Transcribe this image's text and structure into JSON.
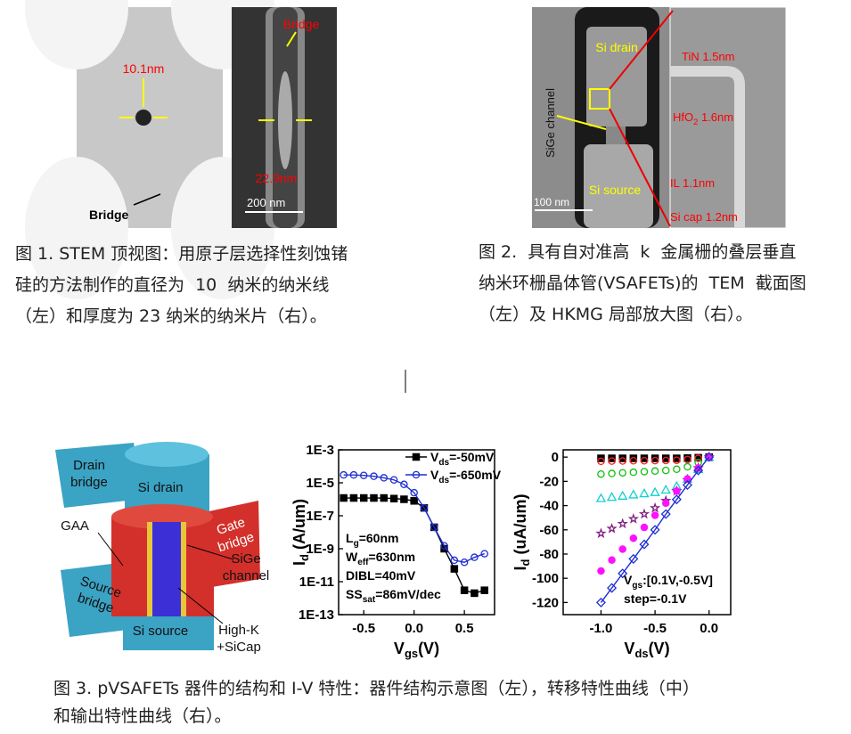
{
  "figure1": {
    "left_image": {
      "diameter": "10.1nm",
      "bridge": "Bridge"
    },
    "right_image": {
      "bridge": "Bridge",
      "thickness": "22.9nm",
      "scale": "200 nm"
    },
    "caption": [
      "图 1. STEM 顶视图：用原子层选择性刻蚀锗",
      "硅的方法制作的直径为  10  纳米的纳米线",
      "（左）和厚度为 23 纳米的纳米片（右）。"
    ]
  },
  "figure2": {
    "image": {
      "drain": "Si drain",
      "channel": "SiGe channel",
      "source": "Si source",
      "scale": "100 nm",
      "tin": "TiN 1.5nm",
      "hfo2": [
        "HfO",
        "2",
        " 1.6nm"
      ],
      "il": "IL 1.1nm",
      "sicap": "Si cap 1.2nm"
    },
    "caption": [
      "图 2.  具有自对准高  k  金属栅的叠层垂直",
      "纳米环栅晶体管(VSAFETs)的  TEM  截面图",
      "（左）及 HKMG 局部放大图（右）。"
    ]
  },
  "figure3": {
    "schematic": {
      "drain_bridge": [
        "Drain",
        "bridge"
      ],
      "si_drain": [
        "Si drain"
      ],
      "gaa": [
        "GAA"
      ],
      "gate_bridge": [
        "Gate",
        "bridge"
      ],
      "sige": [
        "SiGe",
        "channel"
      ],
      "source_bridge": [
        "Source",
        "bridge"
      ],
      "si_source": [
        "Si source"
      ],
      "highk": [
        "High-K",
        "+SiCap"
      ]
    },
    "chart_data": [
      {
        "type": "line",
        "log_y": true,
        "xlabel": [
          "V",
          "gs",
          "(V)"
        ],
        "ylabel": [
          "I",
          "d",
          " (A/um)"
        ],
        "xlim": [
          -0.75,
          0.8
        ],
        "xticks": [
          -0.5,
          {
            "value": 0,
            "label": "0.0"
          },
          0.5
        ],
        "ylim": [
          1e-13,
          0.001
        ],
        "yticks": [
          {
            "value": 0.001,
            "label": "1E-3"
          },
          {
            "value": 1e-05,
            "label": "1E-5"
          },
          {
            "value": 1e-07,
            "label": "1E-7"
          },
          {
            "value": 1e-09,
            "label": "1E-9"
          },
          {
            "value": 1e-11,
            "label": "1E-11"
          },
          {
            "value": 1e-13,
            "label": "1E-13"
          }
        ],
        "legend": "upper right",
        "x": [
          -0.7,
          -0.6,
          -0.5,
          -0.4,
          -0.3,
          -0.2,
          -0.1,
          0,
          0.1,
          0.2,
          0.3,
          0.4,
          0.5,
          0.6,
          0.7
        ],
        "series": [
          {
            "name": [
              "V",
              "ds",
              "=-50mV"
            ],
            "color": "#000000",
            "marker": "square",
            "filled": true,
            "line": true,
            "values": [
              1.2e-06,
              1.2e-06,
              1.2e-06,
              1.2e-06,
              1.2e-06,
              1.1e-06,
              1e-06,
              8e-07,
              3e-07,
              2e-08,
              1e-09,
              6e-11,
              3e-12,
              2e-12,
              3e-12
            ]
          },
          {
            "name": [
              "V",
              "ds",
              "=-650mV"
            ],
            "color": "#1f2fd0",
            "marker": "circle",
            "filled": false,
            "line": true,
            "values": [
              3e-05,
              3e-05,
              2.8e-05,
              2.5e-05,
              2e-05,
              1.5e-05,
              8e-06,
              2.5e-06,
              3e-07,
              2e-08,
              1.5e-09,
              2e-10,
              1.5e-10,
              3e-10,
              5e-10
            ]
          }
        ],
        "annotations": [
          [
            "L",
            "g",
            "=60nm"
          ],
          [
            "W",
            "eff",
            "=630nm"
          ],
          [
            "DIBL=40mV"
          ],
          [
            "SS",
            "sat",
            "=86mV/dec"
          ]
        ]
      },
      {
        "type": "line",
        "log_y": false,
        "xlabel": [
          "V",
          "ds",
          "(V)"
        ],
        "ylabel": [
          "I",
          "d",
          " (uA/um)"
        ],
        "xlim": [
          -1.35,
          0.2
        ],
        "xticks": [
          {
            "value": -1,
            "label": "-1.0"
          },
          -0.5,
          {
            "value": 0,
            "label": "0.0"
          }
        ],
        "ylim": [
          -130,
          6
        ],
        "yticks": [
          0,
          -20,
          -40,
          -60,
          -80,
          -100,
          -120
        ],
        "x": [
          -1,
          -0.9,
          -0.8,
          -0.7,
          -0.6,
          -0.5,
          -0.4,
          -0.3,
          -0.2,
          -0.1,
          0
        ],
        "series": [
          {
            "color": "#000000",
            "marker": "square",
            "filled": true,
            "line": false,
            "values": [
              -1,
              -1,
              -1,
              -1,
              -1,
              -1,
              -1,
              -1,
              -0.8,
              -0.5,
              0
            ]
          },
          {
            "color": "#ff2020",
            "marker": "circle",
            "filled": false,
            "line": false,
            "values": [
              -3.5,
              -3.3,
              -3.2,
              -3,
              -3,
              -2.9,
              -2.8,
              -2.6,
              -2,
              -1,
              0
            ]
          },
          {
            "color": "#10c010",
            "marker": "circle",
            "filled": false,
            "line": false,
            "values": [
              -14,
              -13.5,
              -13,
              -12.5,
              -12,
              -11.5,
              -11,
              -10,
              -8,
              -4.5,
              0
            ]
          },
          {
            "color": "#10d0d0",
            "marker": "triangle",
            "filled": false,
            "line": false,
            "values": [
              -34,
              -33,
              -32,
              -31,
              -30,
              -29,
              -27,
              -24,
              -18,
              -10,
              0
            ]
          },
          {
            "color": "#802080",
            "marker": "star",
            "filled": false,
            "line": false,
            "values": [
              -63,
              -59,
              -55,
              -51,
              -47,
              -42,
              -36,
              -28,
              -19,
              -9,
              0
            ]
          },
          {
            "color": "#ff10ff",
            "marker": "circle",
            "filled": true,
            "line": false,
            "values": [
              -94,
              -85,
              -76,
              -67,
              -58,
              -48,
              -38,
              -28,
              -18,
              -9,
              0
            ]
          },
          {
            "color": "#1f2fd0",
            "marker": "diamond",
            "filled": false,
            "line": true,
            "values": [
              -120,
              -108,
              -96,
              -84,
              -72,
              -60,
              -47,
              -35,
              -23,
              -11,
              0
            ]
          }
        ],
        "annotations": [
          [
            "V",
            "gs",
            ":[0.1V,-0.5V]"
          ],
          [
            "step=-0.1V"
          ]
        ]
      }
    ],
    "caption": [
      "图 3. pVSAFETs 器件的结构和 I-V 特性：器件结构示意图（左），转移特性曲线（中）",
      "和输出特性曲线（右）。"
    ]
  }
}
